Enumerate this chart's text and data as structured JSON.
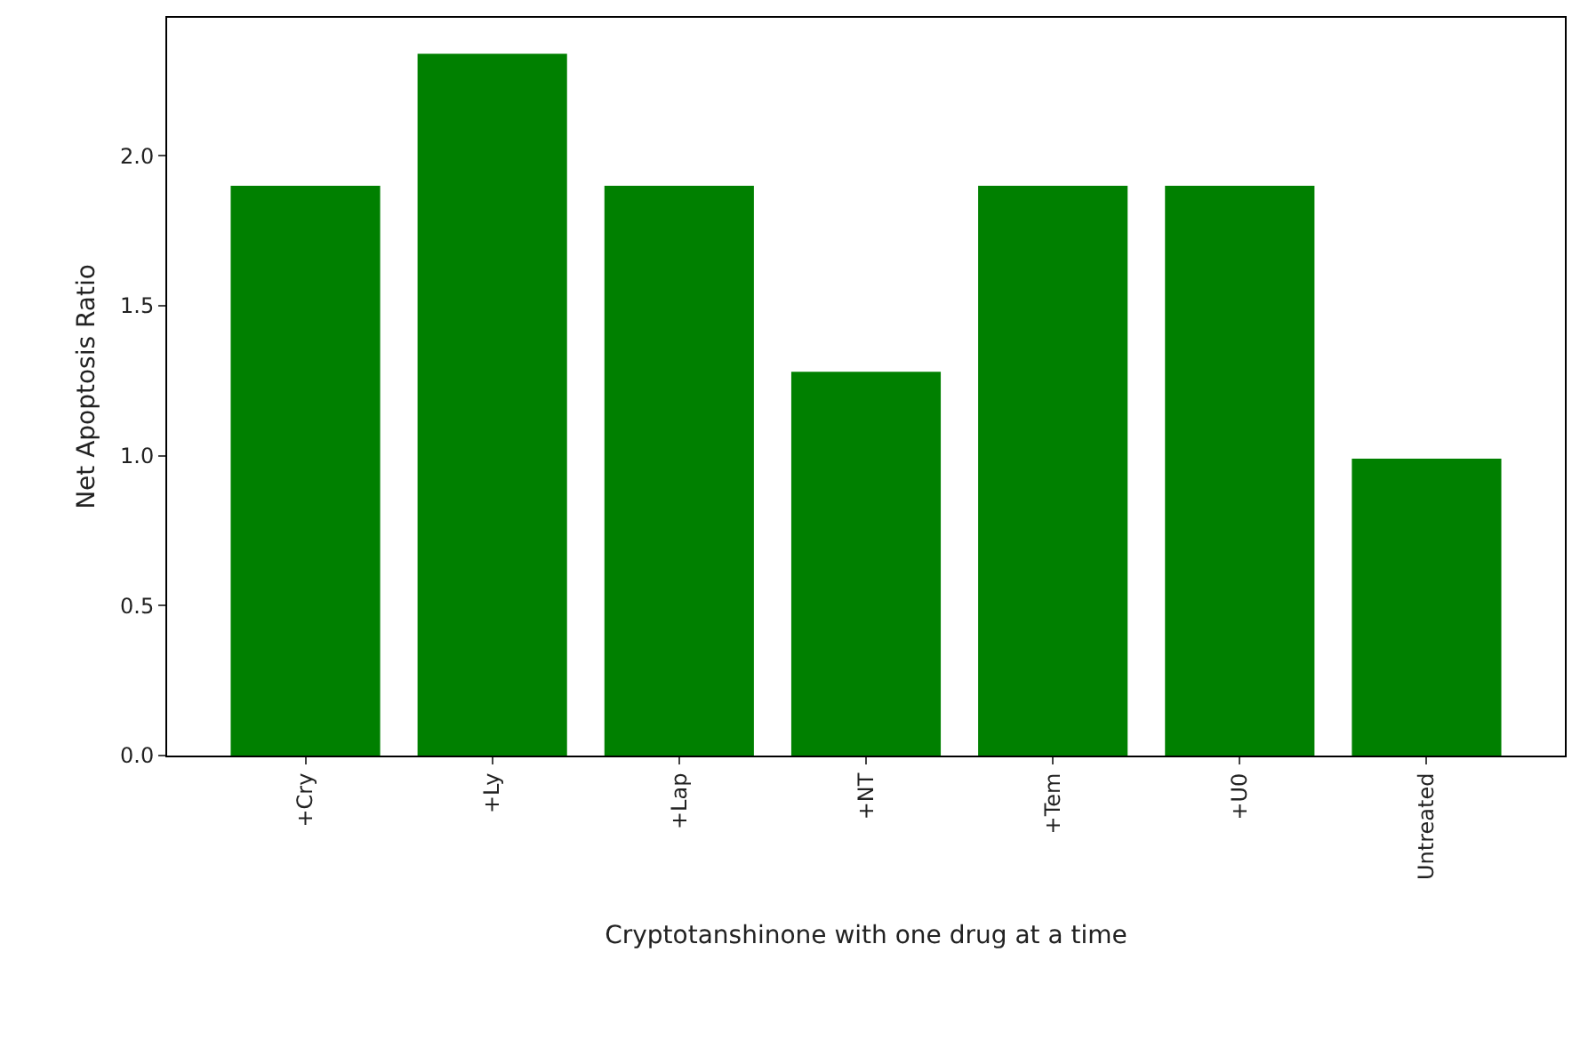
{
  "chart_data": {
    "type": "bar",
    "xlabel": "Cryptotanshinone with one drug at a time",
    "ylabel": "Net Apoptosis Ratio",
    "categories": [
      "+Cry",
      "+Ly",
      "+Lap",
      "+NT",
      "+Tem",
      "+U0",
      "Untreated"
    ],
    "values": [
      1.9,
      2.34,
      1.9,
      1.28,
      1.9,
      1.9,
      0.99
    ],
    "color": "#008000",
    "ylim": [
      0,
      2.46
    ],
    "yticks": [
      {
        "value": 0,
        "label": "0.0"
      },
      {
        "value": 0.5,
        "label": "0.5"
      },
      {
        "value": 1,
        "label": "1.0"
      },
      {
        "value": 1.5,
        "label": "1.5"
      },
      {
        "value": 2,
        "label": "2.0"
      }
    ]
  }
}
